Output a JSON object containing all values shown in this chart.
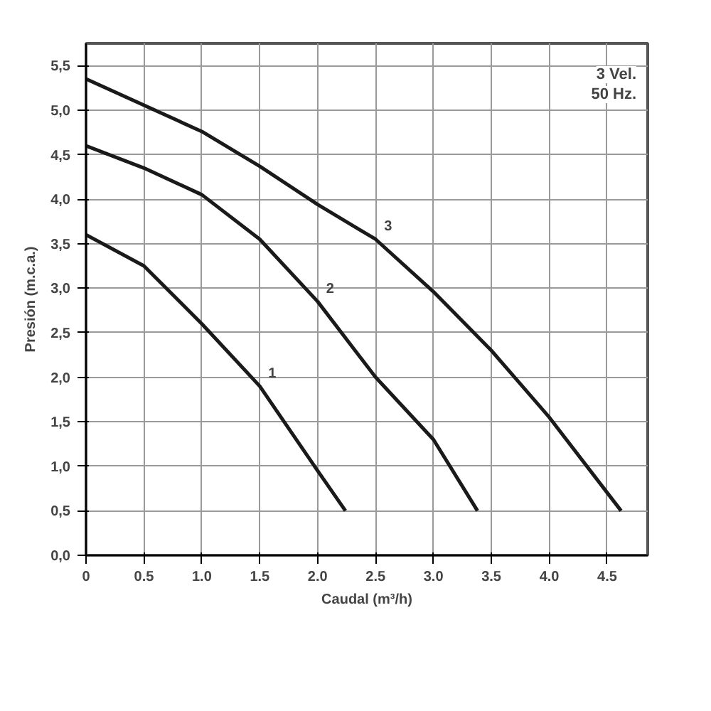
{
  "chart_data": {
    "type": "line",
    "xlabel": "Caudal (m³/h)",
    "ylabel": "Presión (m.c.a.)",
    "xlim": [
      0,
      4.85
    ],
    "ylim": [
      0,
      5.75
    ],
    "xticks": [
      0,
      0.5,
      {
        "value": 1,
        "label": "1.0"
      },
      1.5,
      {
        "value": 2,
        "label": "2.0"
      },
      2.5,
      {
        "value": 3,
        "label": "3.0"
      },
      3.5,
      {
        "value": 4,
        "label": "4.0"
      },
      4.5
    ],
    "yticks": [
      {
        "value": 0,
        "label": "0,0"
      },
      {
        "value": 0.5,
        "label": "0,5"
      },
      {
        "value": 1,
        "label": "1,0"
      },
      {
        "value": 1.5,
        "label": "1,5"
      },
      {
        "value": 2,
        "label": "2,0"
      },
      {
        "value": 2.5,
        "label": "2,5"
      },
      {
        "value": 3,
        "label": "3,0"
      },
      {
        "value": 3.5,
        "label": "3,5"
      },
      {
        "value": 4,
        "label": "4,0"
      },
      {
        "value": 4.5,
        "label": "4,5"
      },
      {
        "value": 5,
        "label": "5,0"
      },
      {
        "value": 5.5,
        "label": "5,5"
      }
    ],
    "grid": true,
    "marker": "none",
    "line_style": "solid",
    "annotations": [
      "3 Vel.",
      "50 Hz."
    ],
    "series": [
      {
        "name": "1",
        "color": "#1a1a1a",
        "x": [
          0,
          0.5,
          1.0,
          1.5,
          2.0,
          2.24
        ],
        "values": [
          3.6,
          3.25,
          2.6,
          1.9,
          0.95,
          0.5
        ]
      },
      {
        "name": "2",
        "color": "#1a1a1a",
        "x": [
          0,
          0.5,
          1.0,
          1.5,
          2.0,
          2.5,
          3.0,
          3.38
        ],
        "values": [
          4.6,
          4.35,
          4.05,
          3.55,
          2.85,
          2.0,
          1.3,
          0.5
        ]
      },
      {
        "name": "3",
        "color": "#1a1a1a",
        "x": [
          0,
          1.0,
          1.5,
          2.0,
          2.5,
          3.0,
          3.5,
          4.0,
          4.62
        ],
        "values": [
          5.35,
          4.76,
          4.37,
          3.94,
          3.55,
          2.96,
          2.3,
          1.55,
          0.5
        ]
      }
    ]
  }
}
